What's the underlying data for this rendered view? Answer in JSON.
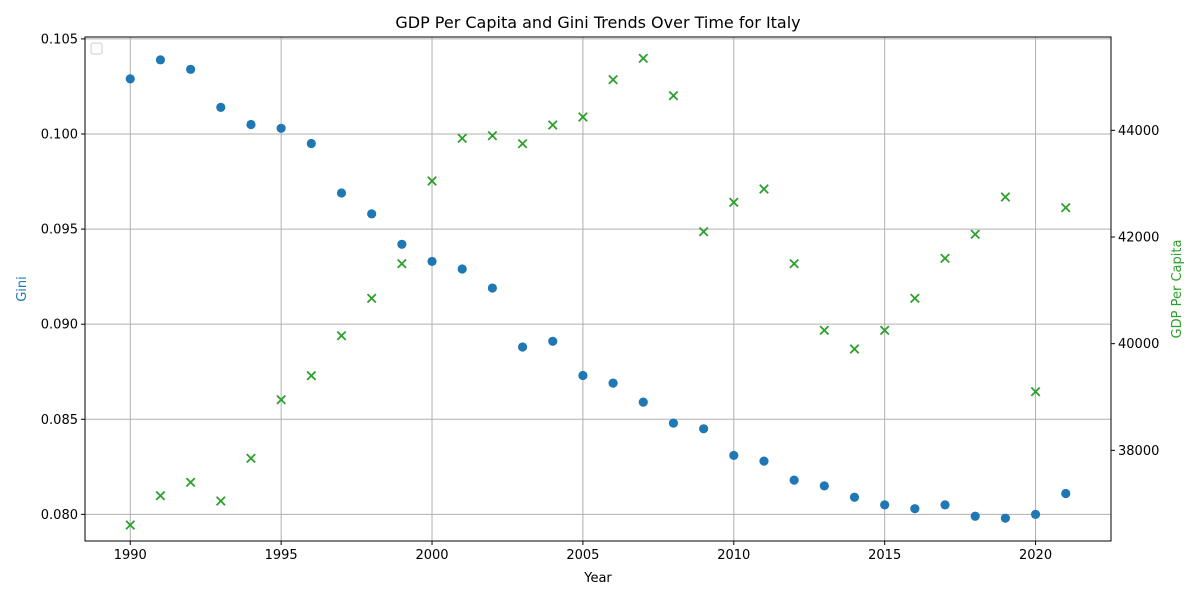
{
  "chart_data": {
    "type": "scatter",
    "title": "GDP Per Capita and Gini Trends Over Time for Italy",
    "xlabel": "Year",
    "ylabel_left": "Gini",
    "ylabel_right": "GDP Per Capita",
    "xlim": [
      1988.5,
      2022.5
    ],
    "ylim_left": [
      0.0786,
      0.1051
    ],
    "ylim_right": [
      36300,
      45750
    ],
    "x_ticks": [
      1990,
      1995,
      2000,
      2005,
      2010,
      2015,
      2020
    ],
    "x_tick_labels": [
      "1990",
      "1995",
      "2000",
      "2005",
      "2010",
      "2015",
      "2020"
    ],
    "y_left_ticks": [
      0.08,
      0.085,
      0.09,
      0.095,
      0.1,
      0.105
    ],
    "y_left_tick_labels": [
      "0.080",
      "0.085",
      "0.090",
      "0.095",
      "0.100",
      "0.105"
    ],
    "y_right_ticks": [
      38000,
      40000,
      42000,
      44000
    ],
    "y_right_tick_labels": [
      "38000",
      "40000",
      "42000",
      "44000"
    ],
    "grid": true,
    "legend": "top-left",
    "colors": {
      "gini": "#1f77b4",
      "gdp": "#2ca02c"
    },
    "x": [
      1990,
      1991,
      1992,
      1993,
      1994,
      1995,
      1996,
      1997,
      1998,
      1999,
      2000,
      2001,
      2002,
      2003,
      2004,
      2005,
      2006,
      2007,
      2008,
      2009,
      2010,
      2011,
      2012,
      2013,
      2014,
      2015,
      2016,
      2017,
      2018,
      2019,
      2020,
      2021
    ],
    "series": [
      {
        "axis": "left",
        "marker": "circle",
        "values": [
          0.1029,
          0.1039,
          0.1034,
          0.1014,
          0.1005,
          0.1003,
          0.0995,
          0.0969,
          0.0958,
          0.0942,
          0.0933,
          0.0929,
          0.0919,
          0.0888,
          0.0891,
          0.0873,
          0.0869,
          0.0859,
          0.0848,
          0.0845,
          0.0831,
          0.0828,
          0.0818,
          0.0815,
          0.0809,
          0.0805,
          0.0803,
          0.0805,
          0.0799,
          0.0798,
          0.08,
          0.0811
        ]
      },
      {
        "axis": "right",
        "marker": "x",
        "values": [
          36600,
          37150,
          37400,
          37050,
          37850,
          38950,
          39400,
          40150,
          40850,
          41500,
          43050,
          43850,
          43900,
          43750,
          44100,
          44250,
          44950,
          45350,
          44650,
          42100,
          42650,
          42900,
          41500,
          40250,
          39900,
          40250,
          40850,
          41600,
          42050,
          42750,
          39100,
          42550
        ]
      }
    ]
  }
}
